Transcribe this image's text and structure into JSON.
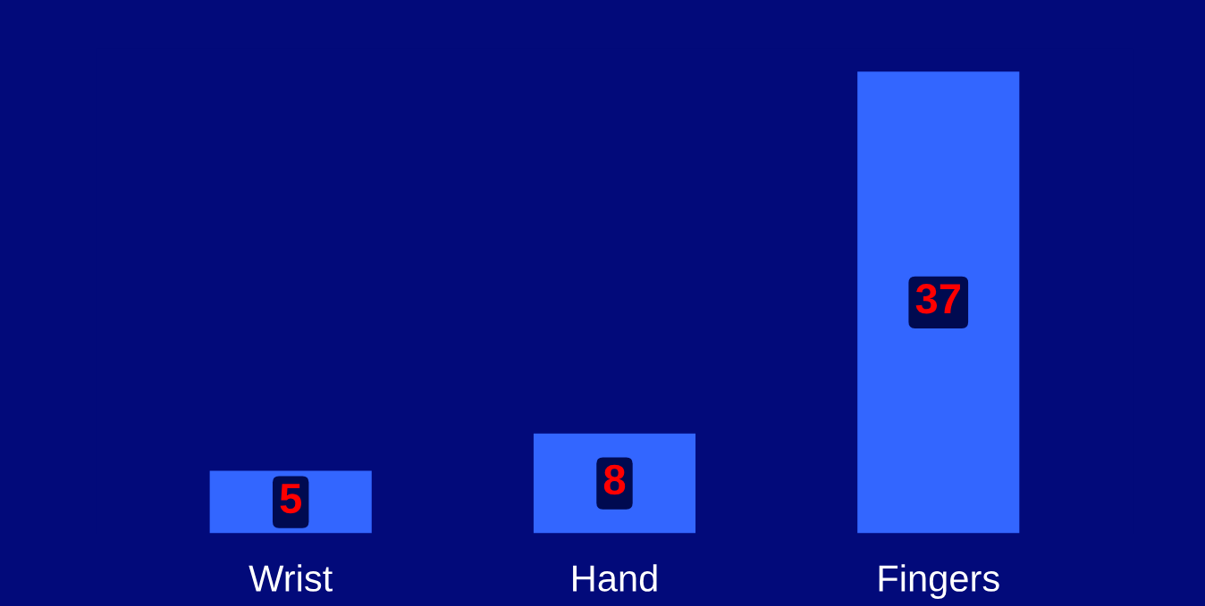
{
  "chart_data": {
    "type": "bar",
    "categories": [
      "Wrist",
      "Hand",
      "Fingers"
    ],
    "values": [
      5,
      8,
      37
    ],
    "color": "#3366ff",
    "data_labels": true,
    "grid": false,
    "legend": false,
    "tick_labels": "x"
  }
}
